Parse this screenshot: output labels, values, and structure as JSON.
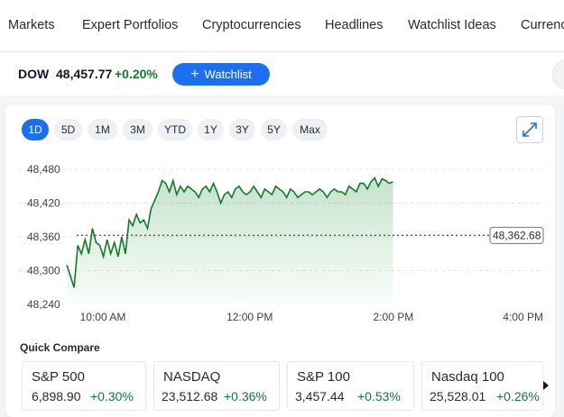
{
  "nav": {
    "items": [
      {
        "label": "Markets"
      },
      {
        "label": "Expert Portfolios"
      },
      {
        "label": "Cryptocurrencies"
      },
      {
        "label": "Headlines"
      },
      {
        "label": "Watchlist Ideas"
      },
      {
        "label": "Currencies"
      }
    ]
  },
  "ticker": {
    "name": "DOW",
    "value": "48,457.77",
    "change": "+0.20%",
    "watchlist_label": "Watchlist"
  },
  "ranges": [
    "1D",
    "5D",
    "1M",
    "3M",
    "YTD",
    "1Y",
    "3Y",
    "5Y",
    "Max"
  ],
  "active_range": "1D",
  "chart_data": {
    "type": "area",
    "y_ticks": [
      "48,480",
      "48,420",
      "48,360",
      "48,300",
      "48,240"
    ],
    "x_ticks": [
      "10:00 AM",
      "12:00 PM",
      "2:00 PM",
      "4:00 PM"
    ],
    "ylim": [
      48240,
      48480
    ],
    "previous_close": 48362.68,
    "previous_close_label": "48,362.68",
    "grid": true,
    "line_color": "#137a26",
    "x": [
      0,
      3,
      6,
      9,
      12,
      15,
      18,
      21,
      24,
      27,
      30,
      33,
      36,
      39,
      42,
      45,
      48,
      51,
      54,
      57,
      60,
      63,
      66,
      69,
      72,
      75,
      78,
      81,
      84,
      87,
      90,
      93,
      96,
      99,
      102,
      105,
      108,
      111,
      114,
      117,
      120,
      123,
      126,
      129,
      132,
      135,
      138,
      141,
      144,
      147,
      150,
      153,
      156,
      159,
      162,
      165,
      168,
      171,
      174,
      177,
      180,
      183,
      186,
      189,
      192,
      195,
      198,
      201,
      204,
      207,
      210,
      213,
      216,
      219,
      222,
      225,
      228,
      231,
      234,
      237,
      240,
      243,
      246,
      249,
      252,
      255,
      258,
      261,
      264,
      267
    ],
    "values": [
      48310,
      48290,
      48270,
      48345,
      48330,
      48355,
      48330,
      48375,
      48350,
      48345,
      48325,
      48355,
      48330,
      48350,
      48325,
      48360,
      48330,
      48390,
      48380,
      48400,
      48385,
      48390,
      48375,
      48410,
      48425,
      48440,
      48460,
      48455,
      48440,
      48460,
      48435,
      48450,
      48440,
      48450,
      48445,
      48440,
      48430,
      48445,
      48450,
      48440,
      48455,
      48440,
      48420,
      48435,
      48440,
      48430,
      48445,
      48450,
      48440,
      48435,
      48440,
      48450,
      48440,
      48430,
      48445,
      48440,
      48435,
      48450,
      48445,
      48440,
      48430,
      48445,
      48440,
      48430,
      48435,
      48440,
      48440,
      48435,
      48440,
      48445,
      48440,
      48430,
      48440,
      48445,
      48440,
      48440,
      48435,
      48450,
      48445,
      48440,
      48455,
      48455,
      48445,
      48458,
      48465,
      48450,
      48463,
      48460,
      48455,
      48458
    ]
  },
  "quick_compare": {
    "title": "Quick Compare",
    "items": [
      {
        "name": "S&P 500",
        "value": "6,898.90",
        "change": "+0.30%"
      },
      {
        "name": "NASDAQ",
        "value": "23,512.68",
        "change": "+0.36%"
      },
      {
        "name": "S&P 100",
        "value": "3,457.44",
        "change": "+0.53%"
      },
      {
        "name": "Nasdaq 100",
        "value": "25,528.01",
        "change": "+0.26%"
      }
    ]
  },
  "colors": {
    "accent": "#1d6ff2",
    "positive": "#0f7b2e"
  },
  "icons": {
    "expand": "expand-arrows-icon",
    "next": "caret-right-icon",
    "plus": "plus-icon"
  }
}
